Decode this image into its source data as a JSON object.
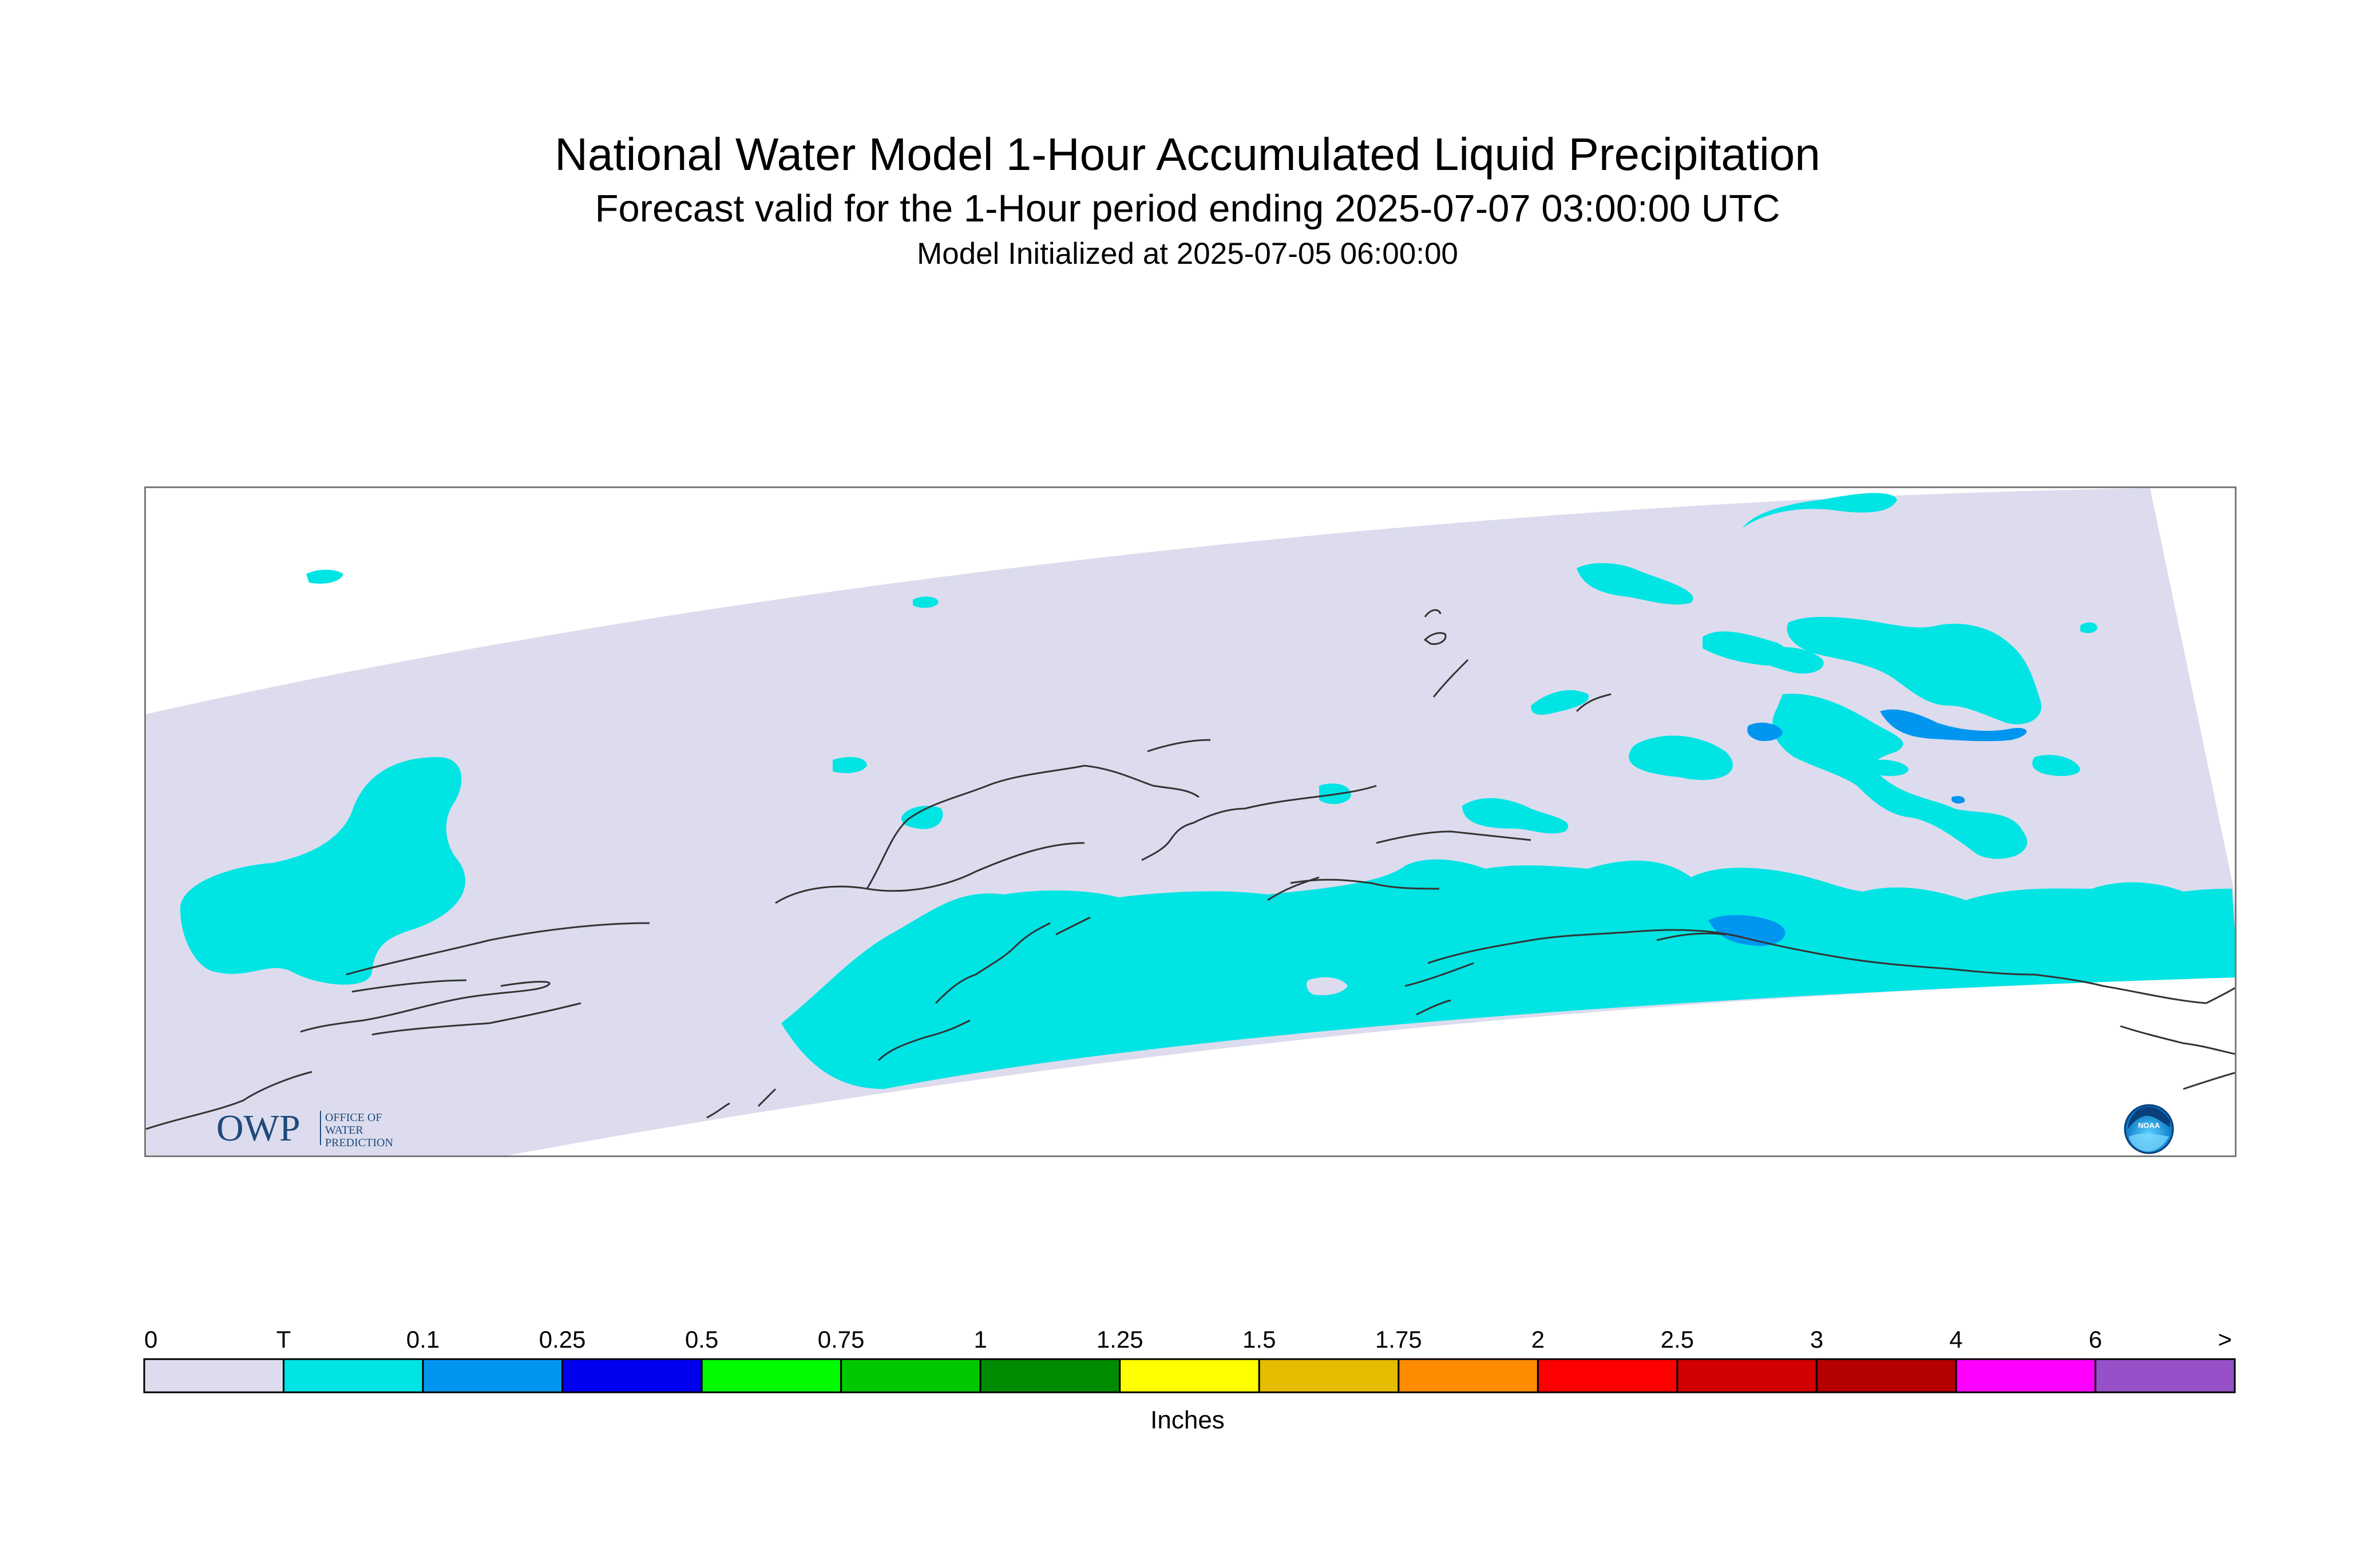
{
  "title": "National Water Model 1-Hour Accumulated Liquid Precipitation",
  "subtitle": "Forecast valid for the 1-Hour period ending 2025-07-07 03:00:00 UTC",
  "init_line": "Model Initialized at 2025-07-05 06:00:00",
  "logos": {
    "owp_text": "OWP",
    "owp_small": [
      "OFFICE OF",
      "WATER",
      "PREDICTION"
    ],
    "noaa_text": "NOAA"
  },
  "colors": {
    "domain_fill": "#dcdcee",
    "coast_line": "#333333",
    "frame": "#7a7a7a"
  },
  "legend": {
    "unit": "Inches",
    "tick_labels": [
      "0",
      "T",
      "0.1",
      "0.25",
      "0.5",
      "0.75",
      "1",
      "1.25",
      "1.5",
      "1.75",
      "2",
      "2.5",
      "3",
      "4",
      "6",
      ">"
    ],
    "bins": [
      {
        "color": "#dcdcee"
      },
      {
        "color": "#00e4e4"
      },
      {
        "color": "#0096f0"
      },
      {
        "color": "#0000f0"
      },
      {
        "color": "#00fa00"
      },
      {
        "color": "#00c800"
      },
      {
        "color": "#008c00"
      },
      {
        "color": "#ffff00"
      },
      {
        "color": "#e6bc00"
      },
      {
        "color": "#ff8c00"
      },
      {
        "color": "#ff0000"
      },
      {
        "color": "#d20000"
      },
      {
        "color": "#b40000"
      },
      {
        "color": "#ff00ff"
      },
      {
        "color": "#9650c8"
      }
    ]
  }
}
